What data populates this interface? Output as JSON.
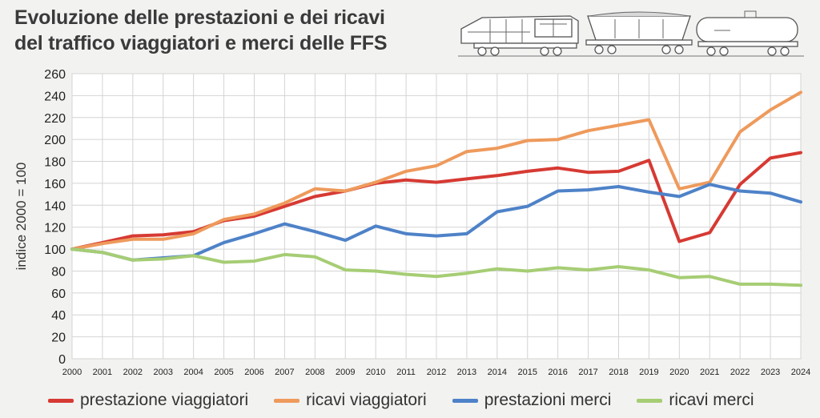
{
  "title_line1": "Evoluzione delle prestazioni e dei ricavi",
  "title_line2": "del traffico viaggiatori e merci delle FFS",
  "chart_data": {
    "type": "line",
    "ylabel": "indice 2000 = 100",
    "xlabel": "",
    "ylim": [
      0,
      260
    ],
    "yticks": [
      0,
      20,
      40,
      60,
      80,
      100,
      120,
      140,
      160,
      180,
      200,
      220,
      240,
      260
    ],
    "grid": true,
    "legend_position": "bottom",
    "x": [
      "2000",
      "2001",
      "2002",
      "2003",
      "2004",
      "2005",
      "2006",
      "2007",
      "2008",
      "2009",
      "2010",
      "2011",
      "2012",
      "2013",
      "2014",
      "2015",
      "2016",
      "2017",
      "2018",
      "2019",
      "2020",
      "2021",
      "2022",
      "2023",
      "2024"
    ],
    "series": [
      {
        "name": "prestazione viaggiatori",
        "color": "#d63a33",
        "values": [
          100,
          106,
          112,
          113,
          116,
          126,
          130,
          139,
          148,
          153,
          160,
          163,
          161,
          164,
          167,
          171,
          174,
          170,
          171,
          181,
          107,
          115,
          159,
          183,
          188
        ]
      },
      {
        "name": "ricavi viaggiatori",
        "color": "#ee9a5c",
        "values": [
          100,
          105,
          109,
          109,
          114,
          127,
          132,
          142,
          155,
          153,
          161,
          171,
          176,
          189,
          192,
          199,
          200,
          208,
          213,
          218,
          155,
          161,
          207,
          227,
          243
        ]
      },
      {
        "name": "prestazioni merci",
        "color": "#4e82c8",
        "values": [
          100,
          97,
          90,
          92,
          94,
          106,
          114,
          123,
          116,
          108,
          121,
          114,
          112,
          114,
          134,
          139,
          153,
          154,
          157,
          152,
          148,
          159,
          153,
          151,
          143
        ]
      },
      {
        "name": "ricavi merci",
        "color": "#a6cd74",
        "values": [
          100,
          97,
          90,
          91,
          94,
          88,
          89,
          95,
          93,
          81,
          80,
          77,
          75,
          78,
          82,
          80,
          83,
          81,
          84,
          81,
          74,
          75,
          68,
          68,
          67
        ]
      }
    ]
  }
}
